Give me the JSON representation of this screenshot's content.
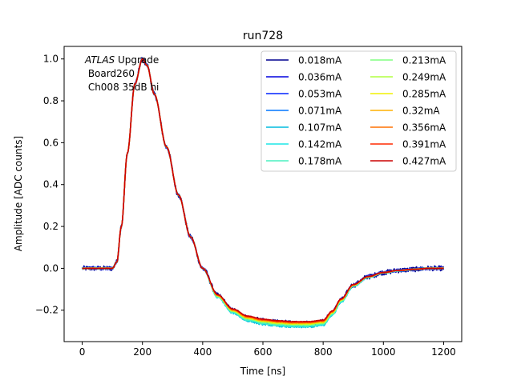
{
  "chart_data": {
    "type": "line",
    "title": "run728",
    "xlabel": "Time [ns]",
    "ylabel": "Amplitude [ADC counts]",
    "xlim": [
      -60,
      1260
    ],
    "ylim": [
      -0.35,
      1.06
    ],
    "xticks": [
      0,
      200,
      400,
      600,
      800,
      1000,
      1200
    ],
    "yticks": [
      -0.2,
      0.0,
      0.2,
      0.4,
      0.6,
      0.8,
      1.0
    ],
    "xtick_labels": [
      "0",
      "200",
      "400",
      "600",
      "800",
      "1000",
      "1200"
    ],
    "ytick_labels": [
      "−0.2",
      "0.0",
      "0.2",
      "0.4",
      "0.6",
      "0.8",
      "1.0"
    ],
    "grid": false,
    "legend_position": "top-right",
    "legend_columns": 2,
    "annotation": {
      "italic": "ATLAS",
      "rest": " Upgrade",
      "line2": " Board260",
      "line3": " Ch008 35dB hi"
    },
    "pulse_shape": {
      "x": [
        0,
        100,
        115,
        130,
        150,
        175,
        200,
        215,
        240,
        280,
        320,
        360,
        400,
        450,
        500,
        550,
        600,
        650,
        700,
        750,
        800,
        830,
        860,
        900,
        950,
        1000,
        1050,
        1100,
        1150,
        1200
      ],
      "y": [
        0.0,
        0.0,
        0.03,
        0.2,
        0.55,
        0.88,
        1.0,
        0.97,
        0.83,
        0.58,
        0.35,
        0.15,
        0.0,
        -0.13,
        -0.2,
        -0.235,
        -0.25,
        -0.258,
        -0.262,
        -0.262,
        -0.255,
        -0.21,
        -0.15,
        -0.08,
        -0.04,
        -0.02,
        -0.01,
        -0.005,
        0.0,
        0.0
      ]
    },
    "series": [
      {
        "name": "0.018mA",
        "color": "#00008f",
        "noise": 0.012,
        "tail_factor": 1.0
      },
      {
        "name": "0.036mA",
        "color": "#0000dd",
        "noise": 0.008,
        "tail_factor": 1.0
      },
      {
        "name": "0.053mA",
        "color": "#0022ff",
        "noise": 0.005,
        "tail_factor": 1.01
      },
      {
        "name": "0.071mA",
        "color": "#0077ff",
        "noise": 0.004,
        "tail_factor": 1.04
      },
      {
        "name": "0.107mA",
        "color": "#00bbdd",
        "noise": 0.004,
        "tail_factor": 1.07
      },
      {
        "name": "0.142mA",
        "color": "#1de6e6",
        "noise": 0.003,
        "tail_factor": 1.06
      },
      {
        "name": "0.178mA",
        "color": "#4af0c0",
        "noise": 0.003,
        "tail_factor": 1.05
      },
      {
        "name": "0.213mA",
        "color": "#80ff80",
        "noise": 0.002,
        "tail_factor": 1.03
      },
      {
        "name": "0.249mA",
        "color": "#b0ff40",
        "noise": 0.002,
        "tail_factor": 1.02
      },
      {
        "name": "0.285mA",
        "color": "#f0f000",
        "noise": 0.002,
        "tail_factor": 1.01
      },
      {
        "name": "0.32mA",
        "color": "#ffb000",
        "noise": 0.002,
        "tail_factor": 1.0
      },
      {
        "name": "0.356mA",
        "color": "#ff7000",
        "noise": 0.002,
        "tail_factor": 0.99
      },
      {
        "name": "0.391mA",
        "color": "#ff2a00",
        "noise": 0.001,
        "tail_factor": 0.98
      },
      {
        "name": "0.427mA",
        "color": "#cc0000",
        "noise": 0.001,
        "tail_factor": 0.97
      }
    ]
  }
}
